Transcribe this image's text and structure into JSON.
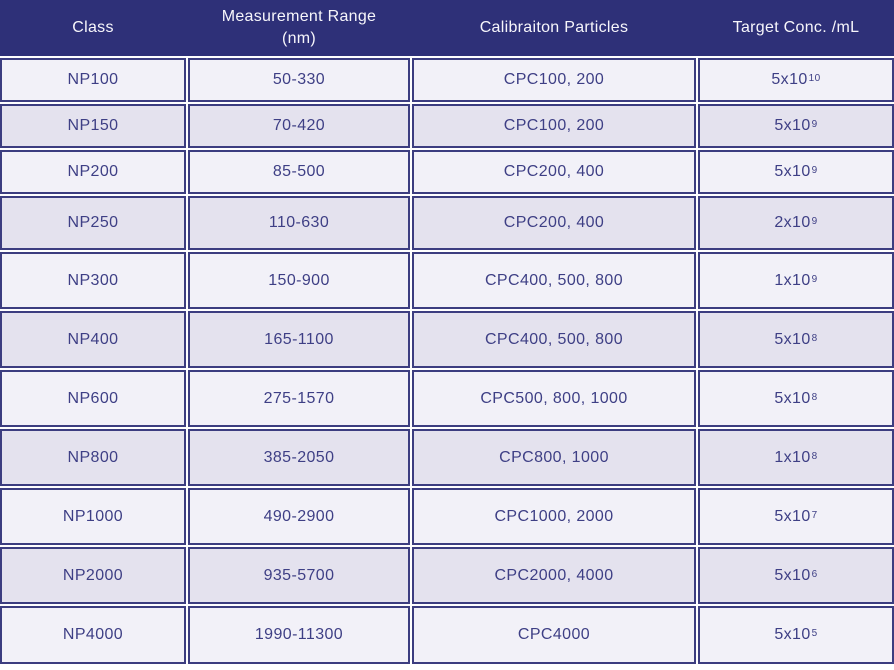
{
  "table": {
    "headers": {
      "class": "Class",
      "range_line1": "Measurement Range",
      "range_line2": "(nm)",
      "particles": "Calibraiton Particles",
      "target": "Target Conc. /mL"
    },
    "rows": [
      {
        "class": "NP100",
        "range": "50-330",
        "particles": "CPC100, 200",
        "conc_base": "5x10",
        "conc_exp": "10"
      },
      {
        "class": "NP150",
        "range": "70-420",
        "particles": "CPC100, 200",
        "conc_base": "5x10",
        "conc_exp": "9"
      },
      {
        "class": "NP200",
        "range": "85-500",
        "particles": "CPC200, 400",
        "conc_base": "5x10",
        "conc_exp": "9"
      },
      {
        "class": "NP250",
        "range": "110-630",
        "particles": "CPC200, 400",
        "conc_base": "2x10",
        "conc_exp": "9"
      },
      {
        "class": "NP300",
        "range": "150-900",
        "particles": "CPC400, 500, 800",
        "conc_base": "1x10",
        "conc_exp": "9"
      },
      {
        "class": "NP400",
        "range": "165-1100",
        "particles": "CPC400, 500, 800",
        "conc_base": "5x10",
        "conc_exp": "8"
      },
      {
        "class": "NP600",
        "range": "275-1570",
        "particles": "CPC500, 800, 1000",
        "conc_base": "5x10",
        "conc_exp": "8"
      },
      {
        "class": "NP800",
        "range": "385-2050",
        "particles": "CPC800, 1000",
        "conc_base": "1x10",
        "conc_exp": "8"
      },
      {
        "class": "NP1000",
        "range": "490-2900",
        "particles": "CPC1000, 2000",
        "conc_base": "5x10",
        "conc_exp": "7"
      },
      {
        "class": "NP2000",
        "range": "935-5700",
        "particles": "CPC2000, 4000",
        "conc_base": "5x10",
        "conc_exp": "6"
      },
      {
        "class": "NP4000",
        "range": "1990-11300",
        "particles": "CPC4000",
        "conc_base": "5x10",
        "conc_exp": "5"
      }
    ],
    "colors": {
      "header_bg": "#2e3078",
      "header_text": "#f7f6fb",
      "border": "#3c3d80",
      "row_light": "#f2f1f8",
      "row_shade": "#e4e2ee",
      "cell_text": "#3e3f85"
    }
  },
  "chart_data": {
    "type": "table",
    "columns": [
      "Class",
      "Measurement Range (nm)",
      "Calibraiton Particles",
      "Target Conc. /mL"
    ],
    "rows": [
      [
        "NP100",
        "50-330",
        "CPC100, 200",
        "5x10^10"
      ],
      [
        "NP150",
        "70-420",
        "CPC100, 200",
        "5x10^9"
      ],
      [
        "NP200",
        "85-500",
        "CPC200, 400",
        "5x10^9"
      ],
      [
        "NP250",
        "110-630",
        "CPC200, 400",
        "2x10^9"
      ],
      [
        "NP300",
        "150-900",
        "CPC400, 500, 800",
        "1x10^9"
      ],
      [
        "NP400",
        "165-1100",
        "CPC400, 500, 800",
        "5x10^8"
      ],
      [
        "NP600",
        "275-1570",
        "CPC500, 800, 1000",
        "5x10^8"
      ],
      [
        "NP800",
        "385-2050",
        "CPC800, 1000",
        "1x10^8"
      ],
      [
        "NP1000",
        "490-2900",
        "CPC1000, 2000",
        "5x10^7"
      ],
      [
        "NP2000",
        "935-5700",
        "CPC2000, 4000",
        "5x10^6"
      ],
      [
        "NP4000",
        "1990-11300",
        "CPC4000",
        "5x10^5"
      ]
    ]
  }
}
